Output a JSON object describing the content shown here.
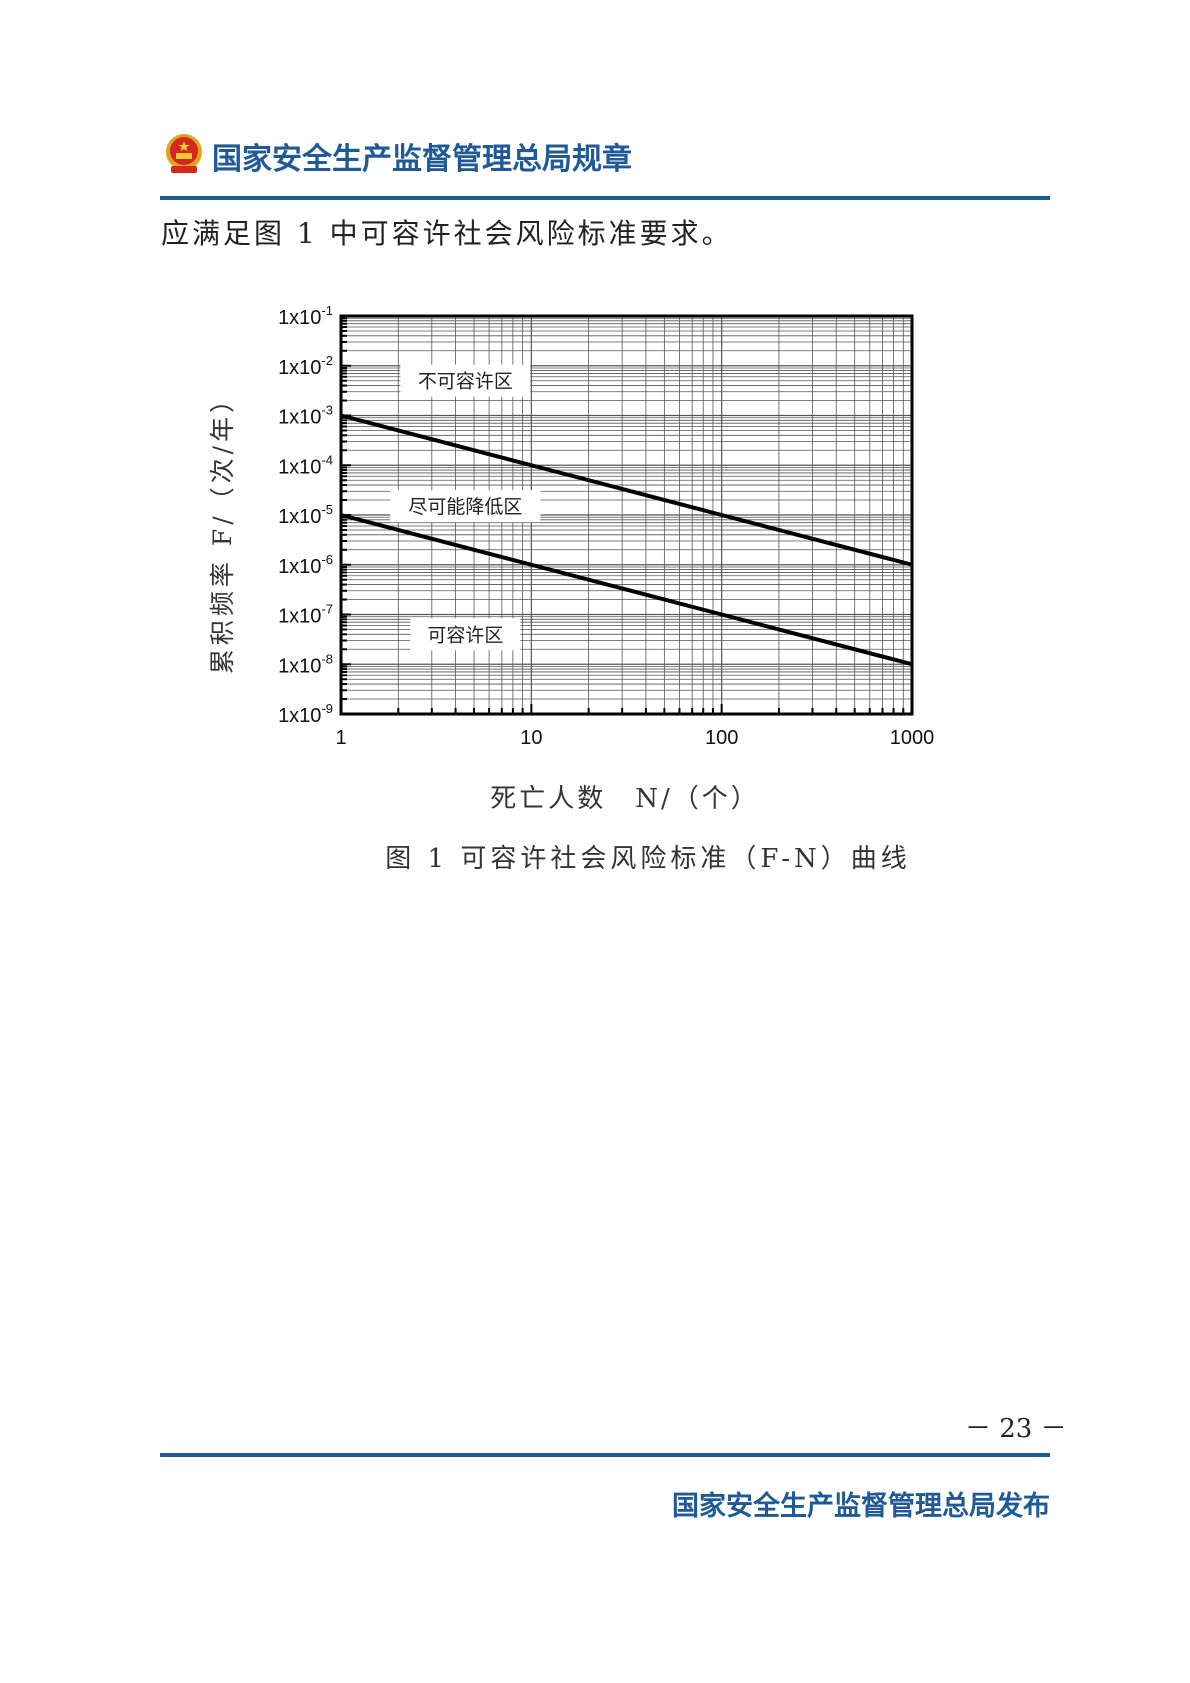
{
  "header": {
    "title": "国家安全生产监督管理总局规章",
    "emblem_icon": "national-emblem",
    "accent_color": "#1a5a96"
  },
  "body": {
    "text": "应满足图 1 中可容许社会风险标准要求。"
  },
  "chart_data": {
    "type": "line",
    "xscale": "log",
    "yscale": "log",
    "xlabel": "死亡人数　N/（个）",
    "ylabel": "累积频率 F/（次/年）",
    "xlim": [
      1,
      1000
    ],
    "ylim": [
      1e-09,
      0.1
    ],
    "x_ticks": [
      "1",
      "10",
      "100",
      "1000"
    ],
    "y_ticks": [
      {
        "base": "1x10",
        "exp": "-1"
      },
      {
        "base": "1x10",
        "exp": "-2"
      },
      {
        "base": "1x10",
        "exp": "-3"
      },
      {
        "base": "1x10",
        "exp": "-4"
      },
      {
        "base": "1x10",
        "exp": "-5"
      },
      {
        "base": "1x10",
        "exp": "-6"
      },
      {
        "base": "1x10",
        "exp": "-7"
      },
      {
        "base": "1x10",
        "exp": "-8"
      },
      {
        "base": "1x10",
        "exp": "-9"
      }
    ],
    "grid": true,
    "series": [
      {
        "x": [
          1,
          10,
          100,
          1000
        ],
        "y": [
          0.001,
          0.0001,
          1e-05,
          1e-06
        ]
      },
      {
        "x": [
          1,
          10,
          100,
          1000
        ],
        "y": [
          1e-05,
          1e-06,
          1e-07,
          1e-08
        ]
      }
    ],
    "annotations": [
      {
        "text": "不可容许区",
        "x": 4.5,
        "y": 0.005
      },
      {
        "text": "尽可能降低区",
        "x": 4.5,
        "y": 1.5e-05
      },
      {
        "text": "可容许区",
        "x": 4.5,
        "y": 4e-08
      }
    ]
  },
  "caption": "图 1  可容许社会风险标准（F-N）曲线",
  "page_number": "－ 23 －",
  "footer": {
    "publisher": "国家安全生产监督管理总局发布"
  }
}
